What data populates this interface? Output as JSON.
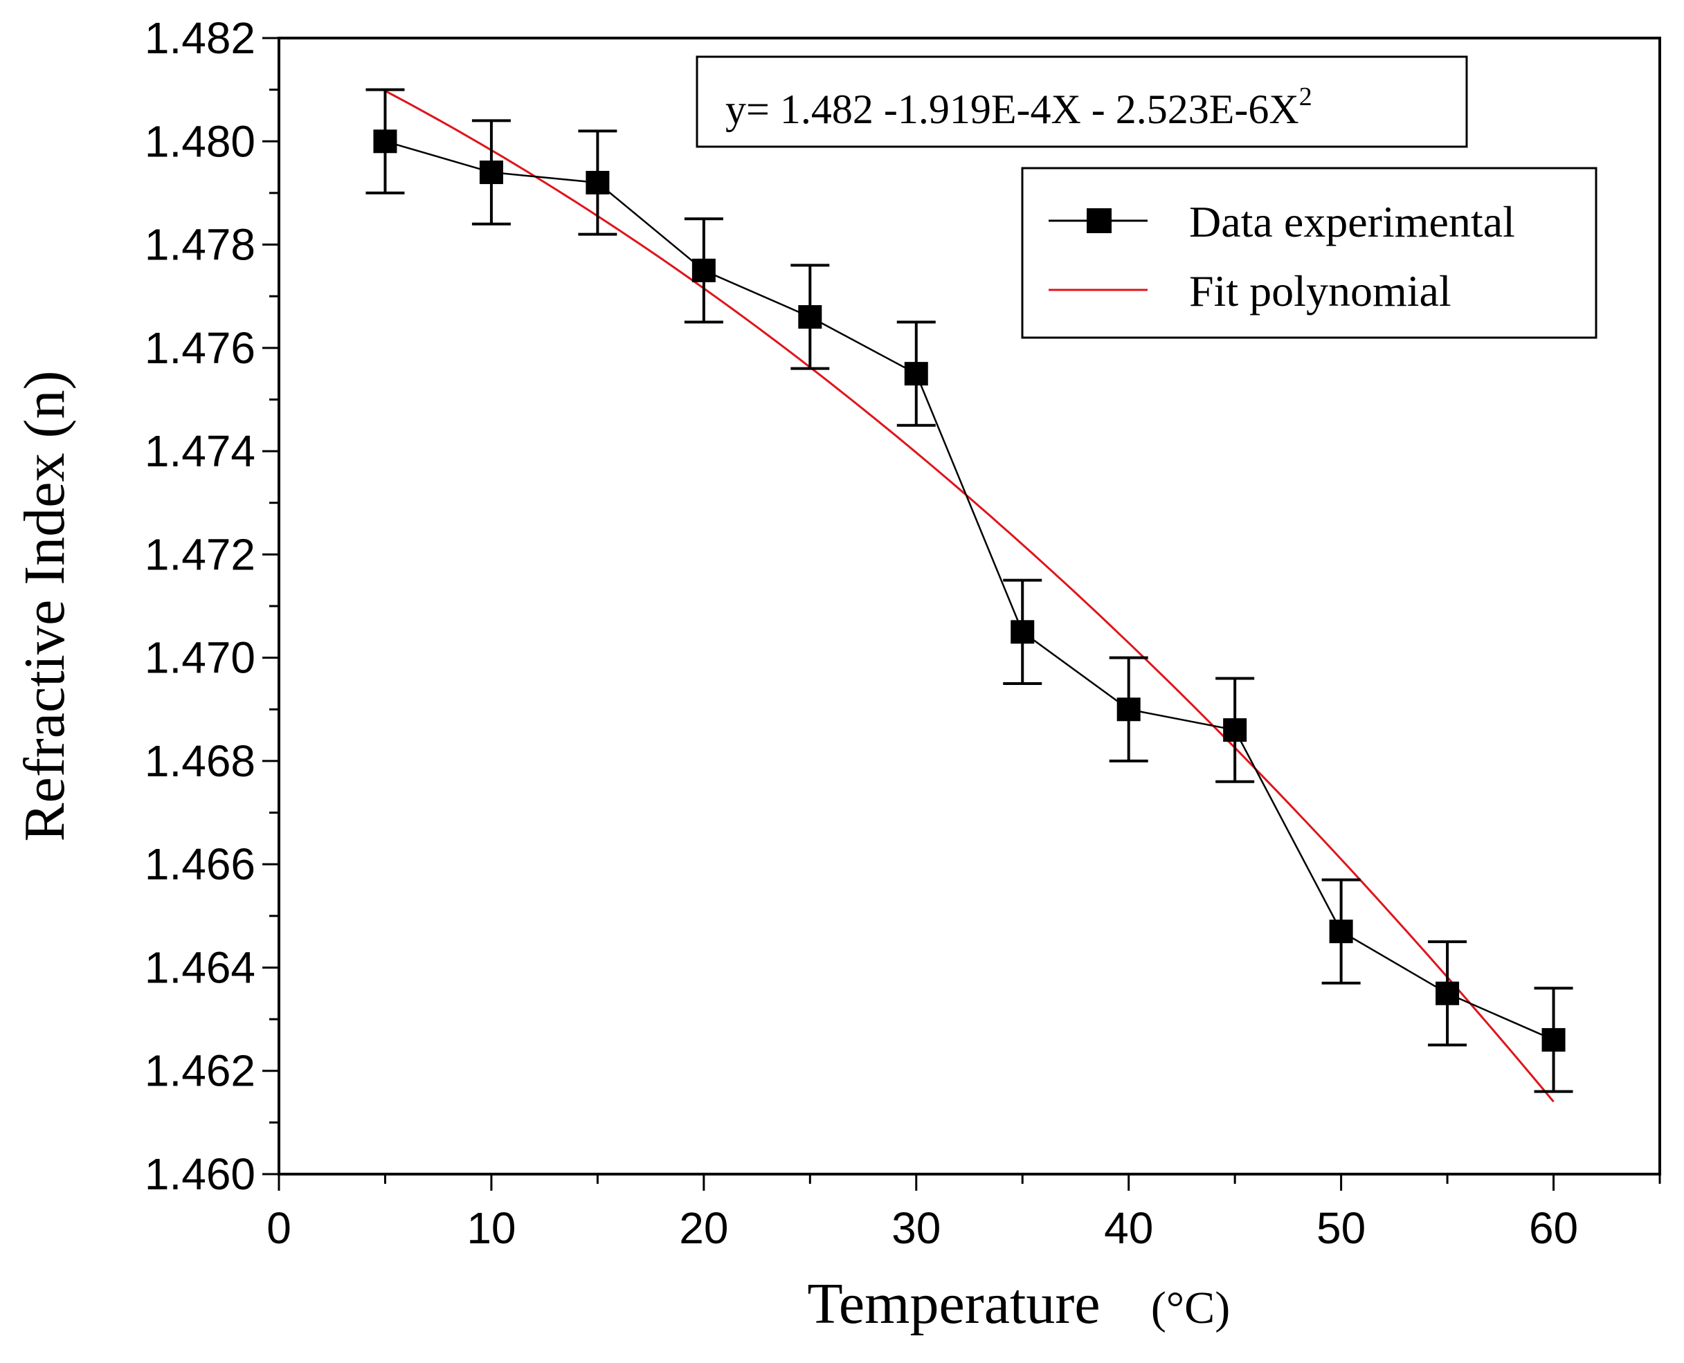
{
  "chart_data": {
    "type": "line",
    "title": "",
    "xlabel": "Temperature",
    "xlabel_unit": "(°C)",
    "ylabel": "Refractive Index (n)",
    "xlim": [
      0,
      65
    ],
    "ylim": [
      1.46,
      1.482
    ],
    "x_ticks": [
      "0",
      "10",
      "20",
      "30",
      "40",
      "50",
      "60"
    ],
    "x_tick_values": [
      0,
      10,
      20,
      30,
      40,
      50,
      60
    ],
    "y_ticks": [
      "1.460",
      "1.462",
      "1.464",
      "1.466",
      "1.468",
      "1.470",
      "1.472",
      "1.474",
      "1.476",
      "1.478",
      "1.480",
      "1.482"
    ],
    "y_tick_values": [
      1.46,
      1.462,
      1.464,
      1.466,
      1.468,
      1.47,
      1.472,
      1.474,
      1.476,
      1.478,
      1.48,
      1.482
    ],
    "grid": false,
    "legend_position": "top-right",
    "equation": {
      "prefix": "y= 1.482 -1.919E-4X - 2.523E-6X",
      "superscript": "2"
    },
    "series": [
      {
        "name": "Data experimental",
        "kind": "line-with-square-markers",
        "color": "#000000",
        "x": [
          5,
          10,
          15,
          20,
          25,
          30,
          35,
          40,
          45,
          50,
          55,
          60
        ],
        "y": [
          1.48,
          1.4794,
          1.4792,
          1.4775,
          1.4766,
          1.4755,
          1.4705,
          1.469,
          1.4686,
          1.4647,
          1.4635,
          1.4626
        ],
        "error": 0.001
      },
      {
        "name": "Fit polynomial",
        "kind": "line",
        "color": "#e0141b",
        "coefficients": [
          1.482,
          -0.0001919,
          -2.523e-06
        ],
        "x_range": [
          5,
          60
        ]
      }
    ]
  }
}
